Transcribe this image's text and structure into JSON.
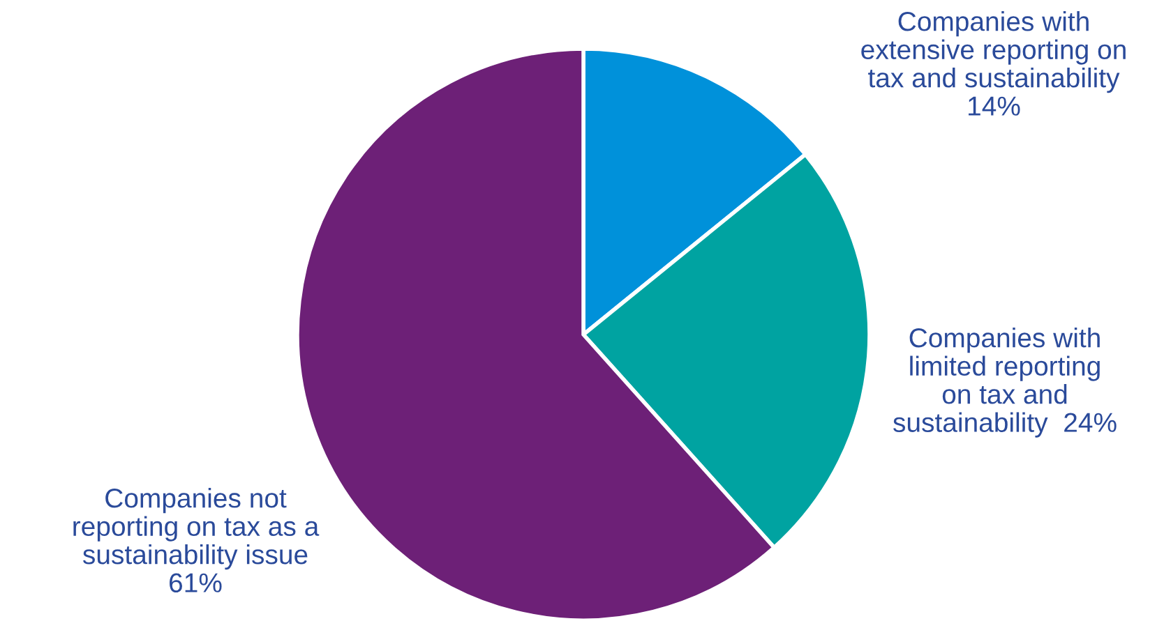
{
  "chart_data": {
    "type": "pie",
    "categories": [
      "Companies with\nextensive reporting on\ntax and sustainability",
      "Companies with\nlimited reporting\non tax and\nsustainability",
      "Companies not\nreporting on tax as a\nsustainability issue"
    ],
    "values": [
      14,
      24,
      61
    ],
    "value_labels": [
      "14%",
      "24%",
      "61%"
    ],
    "colors": [
      "#0091da",
      "#00a3a1",
      "#6d2077"
    ],
    "legend": false
  }
}
